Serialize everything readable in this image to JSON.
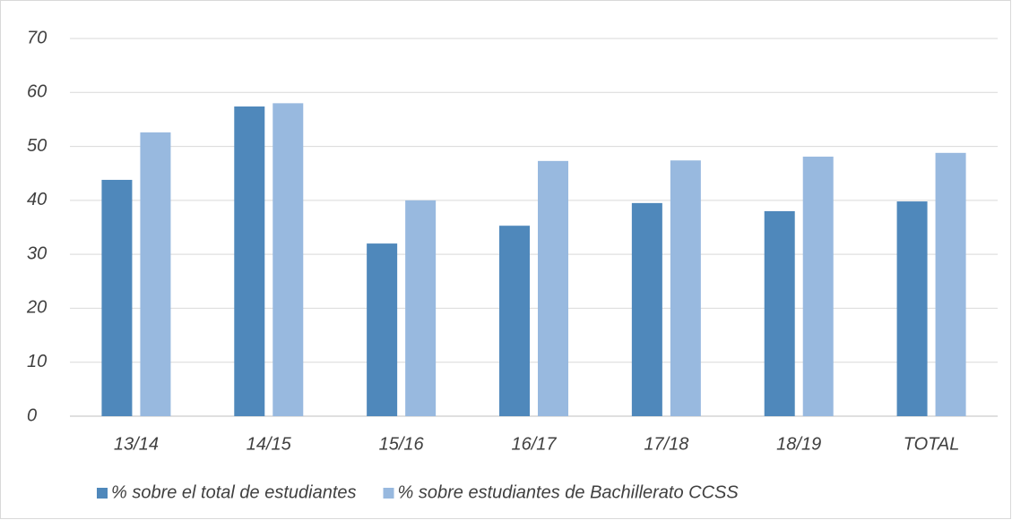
{
  "chart_data": {
    "type": "bar",
    "categories": [
      "13/14",
      "14/15",
      "15/16",
      "16/17",
      "17/18",
      "18/19",
      "TOTAL"
    ],
    "series": [
      {
        "name": "% sobre el total de estudiantes",
        "color": "#4f88bb",
        "values": [
          43.8,
          57.4,
          32.0,
          35.3,
          39.5,
          38.0,
          39.8
        ]
      },
      {
        "name": "% sobre estudiantes de Bachillerato CCSS",
        "color": "#98b9df",
        "values": [
          52.6,
          58.0,
          40.0,
          47.3,
          47.4,
          48.1,
          48.8
        ]
      }
    ],
    "ylim": [
      0,
      70
    ],
    "yticks": [
      0,
      10,
      20,
      30,
      40,
      50,
      60,
      70
    ],
    "grid": true,
    "legend": "bottom"
  }
}
